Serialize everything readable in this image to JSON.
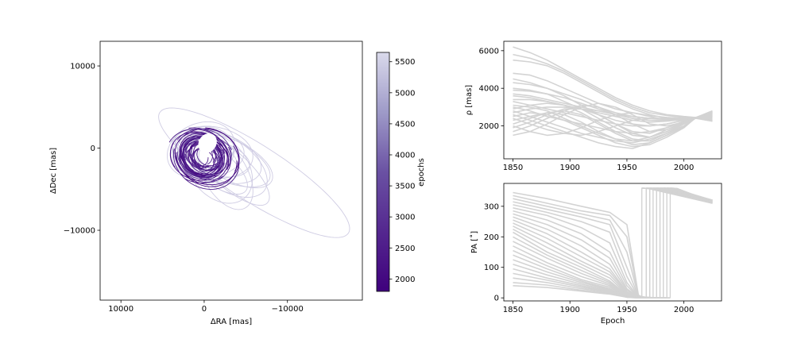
{
  "chart_data": [
    {
      "type": "line",
      "subtype": "orbit-tracks",
      "xlabel": "ΔRA [mas]",
      "ylabel": "ΔDec [mas]",
      "xlim": [
        12500,
        -19000
      ],
      "ylim": [
        -18500,
        13000
      ],
      "x_inverted": true,
      "xticks": [
        10000,
        0,
        -10000
      ],
      "xtick_labels": [
        "10000",
        "0",
        "−10000"
      ],
      "yticks": [
        10000,
        0,
        -10000
      ],
      "ytick_labels": [
        "10000",
        "0",
        "−10000"
      ],
      "colormap": "Purples",
      "color_low": "#3f007d",
      "color_high": "#dadaeb",
      "colorbar": {
        "label": "epochs",
        "range": [
          1800,
          5650
        ],
        "ticks": [
          2000,
          2500,
          3000,
          3500,
          4000,
          4500,
          5000,
          5500
        ],
        "tick_labels": [
          "2000",
          "2500",
          "3000",
          "3500",
          "4000",
          "4500",
          "5000",
          "5500"
        ]
      },
      "orbits": [
        {
          "cx": -6000,
          "cy": -3000,
          "a": 13500,
          "b": 3400,
          "angle": -33
        },
        {
          "cx": -2200,
          "cy": -1200,
          "a": 6200,
          "b": 2600,
          "angle": -25
        },
        {
          "cx": -1500,
          "cy": -1000,
          "a": 5600,
          "b": 2900,
          "angle": -20
        },
        {
          "cx": -3000,
          "cy": -2500,
          "a": 6200,
          "b": 2200,
          "angle": -42
        },
        {
          "cx": -2500,
          "cy": -1800,
          "a": 5800,
          "b": 3100,
          "angle": -35
        },
        {
          "cx": -1000,
          "cy": -500,
          "a": 4900,
          "b": 3100,
          "angle": -10
        },
        {
          "cx": -500,
          "cy": -800,
          "a": 4300,
          "b": 2700,
          "angle": 5
        },
        {
          "cx": -1800,
          "cy": -2500,
          "a": 4700,
          "b": 3400,
          "angle": -50
        },
        {
          "cx": -700,
          "cy": -1500,
          "a": 3700,
          "b": 2400,
          "angle": -30
        },
        {
          "cx": -200,
          "cy": -300,
          "a": 3400,
          "b": 2900,
          "angle": 0
        },
        {
          "cx": 200,
          "cy": -500,
          "a": 3900,
          "b": 2500,
          "angle": 15
        },
        {
          "cx": -1200,
          "cy": -1200,
          "a": 4400,
          "b": 2100,
          "angle": -15
        },
        {
          "cx": -3500,
          "cy": -1600,
          "a": 5200,
          "b": 2400,
          "angle": -28
        },
        {
          "cx": -2600,
          "cy": -3200,
          "a": 4700,
          "b": 2600,
          "angle": -60
        },
        {
          "cx": 400,
          "cy": -200,
          "a": 4200,
          "b": 3200,
          "angle": 25
        },
        {
          "cx": -900,
          "cy": -2000,
          "a": 5200,
          "b": 2100,
          "angle": -38
        }
      ],
      "arcs": {
        "count": 60,
        "angle_range": [
          0,
          360
        ],
        "radius_range": [
          1300,
          4200
        ],
        "aspect": 0.85,
        "tilt": -30
      }
    },
    {
      "type": "line",
      "series_color": "#d3d3d3",
      "xlabel": "",
      "ylabel": "ρ [mas]",
      "xlim": [
        1842,
        2033
      ],
      "ylim": [
        250,
        6500
      ],
      "xticks": [
        1850,
        1900,
        1950,
        2000
      ],
      "xtick_labels": [
        "1850",
        "1900",
        "1950",
        "2000"
      ],
      "yticks": [
        2000,
        4000,
        6000
      ],
      "ytick_labels": [
        "2000",
        "4000",
        "6000"
      ],
      "x": [
        1850,
        1865,
        1880,
        1895,
        1910,
        1925,
        1940,
        1955,
        1970,
        1985,
        2000,
        2010,
        2025
      ],
      "series_values": [
        [
          6200,
          5900,
          5500,
          5000,
          4500,
          4000,
          3500,
          3100,
          2800,
          2600,
          2500,
          2450,
          2400
        ],
        [
          5800,
          5600,
          5300,
          4900,
          4400,
          3900,
          3400,
          3000,
          2700,
          2550,
          2450,
          2420,
          2500
        ],
        [
          5500,
          5400,
          5200,
          4800,
          4300,
          3800,
          3300,
          2900,
          2600,
          2400,
          2350,
          2420,
          2600
        ],
        [
          4800,
          4700,
          4400,
          4000,
          3600,
          3200,
          2900,
          2700,
          2550,
          2450,
          2400,
          2430,
          2550
        ],
        [
          4300,
          4200,
          4000,
          3700,
          3400,
          3000,
          2700,
          2500,
          2400,
          2380,
          2400,
          2440,
          2600
        ],
        [
          3900,
          3850,
          3700,
          3500,
          3200,
          2900,
          2600,
          2400,
          2300,
          2300,
          2350,
          2420,
          2700
        ],
        [
          3600,
          3500,
          3300,
          3100,
          2900,
          2700,
          2500,
          2300,
          2200,
          2250,
          2350,
          2430,
          2800
        ],
        [
          3300,
          3100,
          2900,
          2700,
          2500,
          2300,
          2100,
          2000,
          2000,
          2100,
          2300,
          2440,
          2750
        ],
        [
          3000,
          2800,
          2500,
          2300,
          2100,
          1900,
          1700,
          1600,
          1700,
          1900,
          2200,
          2420,
          2650
        ],
        [
          2800,
          2500,
          2200,
          1900,
          1600,
          1400,
          1200,
          1100,
          1300,
          1600,
          2000,
          2400,
          2550
        ],
        [
          2600,
          2300,
          2000,
          1700,
          1400,
          1100,
          900,
          800,
          1100,
          1500,
          1950,
          2410,
          2500
        ],
        [
          2500,
          2700,
          2600,
          2300,
          1900,
          1500,
          1100,
          900,
          1000,
          1400,
          1900,
          2420,
          2450
        ],
        [
          2300,
          2500,
          2700,
          2600,
          2200,
          1700,
          1300,
          1000,
          1100,
          1500,
          1950,
          2430,
          2400
        ],
        [
          2100,
          2400,
          2700,
          2800,
          2600,
          2100,
          1600,
          1200,
          1200,
          1600,
          2000,
          2440,
          2350
        ],
        [
          1900,
          2200,
          2600,
          2900,
          2900,
          2600,
          2100,
          1600,
          1400,
          1700,
          2100,
          2430,
          2300
        ],
        [
          1700,
          2000,
          2400,
          2800,
          3100,
          3000,
          2600,
          2100,
          1700,
          1800,
          2150,
          2420,
          2250
        ],
        [
          1500,
          1700,
          2100,
          2600,
          3000,
          3200,
          3000,
          2600,
          2100,
          2000,
          2200,
          2410,
          2250
        ],
        [
          2000,
          1700,
          1500,
          1600,
          1900,
          2300,
          2600,
          2700,
          2500,
          2300,
          2300,
          2430,
          2700
        ],
        [
          2400,
          2100,
          1800,
          1600,
          1500,
          1700,
          2000,
          2300,
          2400,
          2350,
          2350,
          2440,
          2600
        ],
        [
          3100,
          3000,
          2800,
          2400,
          2000,
          1600,
          1300,
          1200,
          1400,
          1800,
          2200,
          2420,
          2500
        ],
        [
          3400,
          3400,
          3300,
          3100,
          2700,
          2200,
          1700,
          1300,
          1200,
          1600,
          2100,
          2410,
          2350
        ],
        [
          4000,
          3900,
          3700,
          3300,
          2900,
          2400,
          1900,
          1500,
          1400,
          1700,
          2150,
          2430,
          2450
        ],
        [
          4500,
          4300,
          4000,
          3600,
          3100,
          2600,
          2100,
          1700,
          1600,
          1900,
          2250,
          2440,
          2500
        ],
        [
          2900,
          3100,
          3200,
          3100,
          2900,
          2600,
          2300,
          2100,
          2000,
          2100,
          2300,
          2420,
          2650
        ],
        [
          2700,
          2900,
          3000,
          3000,
          2900,
          2800,
          2600,
          2400,
          2300,
          2300,
          2350,
          2430,
          2750
        ],
        [
          3700,
          3600,
          3400,
          3200,
          3000,
          2800,
          2600,
          2500,
          2400,
          2400,
          2400,
          2440,
          2550
        ]
      ]
    },
    {
      "type": "line",
      "series_color": "#d3d3d3",
      "xlabel": "Epoch",
      "ylabel": "PA [˚]",
      "xlim": [
        1842,
        2033
      ],
      "ylim": [
        -10,
        375
      ],
      "xticks": [
        1850,
        1900,
        1950,
        2000
      ],
      "xtick_labels": [
        "1850",
        "1900",
        "1950",
        "2000"
      ],
      "yticks": [
        0,
        100,
        200,
        300
      ],
      "ytick_labels": [
        "0",
        "100",
        "200",
        "300"
      ],
      "x": [
        1850,
        1880,
        1910,
        1935,
        1950,
        1960
      ],
      "wrap_years": [
        1963,
        1967,
        1970,
        1973,
        1976,
        1979,
        1982,
        1985,
        1988
      ],
      "wrap_value": 360,
      "end_x": 2025,
      "end_values": [
        320,
        310
      ],
      "series_values": [
        [
          345,
          325,
          300,
          280,
          240,
          10
        ],
        [
          335,
          310,
          285,
          270,
          200,
          8
        ],
        [
          325,
          300,
          275,
          255,
          150,
          6
        ],
        [
          315,
          290,
          265,
          240,
          100,
          4
        ],
        [
          305,
          280,
          250,
          215,
          70,
          3
        ],
        [
          295,
          270,
          230,
          180,
          50,
          3
        ],
        [
          285,
          255,
          210,
          150,
          40,
          2
        ],
        [
          275,
          240,
          190,
          130,
          30,
          2
        ],
        [
          265,
          225,
          170,
          110,
          25,
          2
        ],
        [
          255,
          210,
          150,
          95,
          20,
          1
        ],
        [
          245,
          195,
          135,
          85,
          18,
          1
        ],
        [
          235,
          180,
          120,
          75,
          15,
          1
        ],
        [
          225,
          165,
          110,
          65,
          12,
          1
        ],
        [
          215,
          150,
          100,
          55,
          10,
          1
        ],
        [
          200,
          140,
          90,
          50,
          10,
          1
        ],
        [
          185,
          130,
          80,
          45,
          8,
          1
        ],
        [
          170,
          115,
          70,
          40,
          7,
          0
        ],
        [
          155,
          105,
          60,
          35,
          6,
          0
        ],
        [
          140,
          95,
          55,
          30,
          5,
          0
        ],
        [
          125,
          85,
          50,
          28,
          5,
          0
        ],
        [
          110,
          75,
          45,
          25,
          4,
          0
        ],
        [
          95,
          65,
          40,
          22,
          4,
          0
        ],
        [
          80,
          58,
          35,
          20,
          3,
          0
        ],
        [
          65,
          50,
          30,
          18,
          3,
          0
        ],
        [
          50,
          42,
          25,
          15,
          2,
          0
        ],
        [
          40,
          34,
          22,
          12,
          2,
          0
        ]
      ]
    }
  ]
}
